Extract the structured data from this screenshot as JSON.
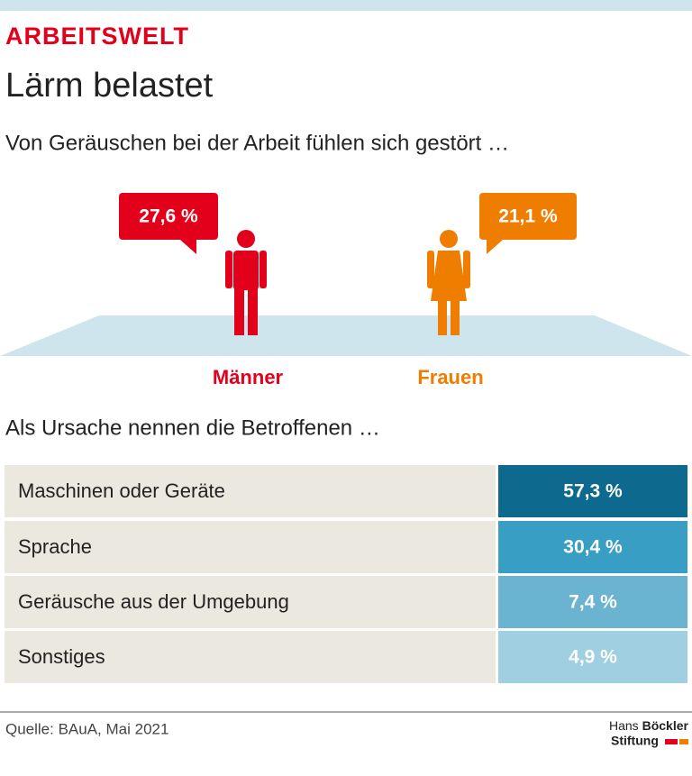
{
  "header": {
    "kicker": "ARBEITSWELT",
    "title": "Lärm belastet"
  },
  "section1": {
    "heading": "Von Geräuschen bei der Arbeit fühlen sich gestört …",
    "groups": [
      {
        "label": "Männer",
        "value": "27,6 %"
      },
      {
        "label": "Frauen",
        "value": "21,1 %"
      }
    ]
  },
  "section2": {
    "heading": "Als Ursache nennen die Betroffenen …",
    "rows": [
      [
        "Maschinen oder Geräte",
        "57,3 %"
      ],
      [
        "Sprache",
        "30,4 %"
      ],
      [
        "Geräusche aus der Umgebung",
        "7,4 %"
      ],
      [
        "Sonstiges",
        "4,9 %"
      ]
    ]
  },
  "footer": {
    "source": "Quelle: BAuA, Mai 2021",
    "logo": [
      "Hans",
      "Böckler",
      "Stiftung"
    ]
  }
}
